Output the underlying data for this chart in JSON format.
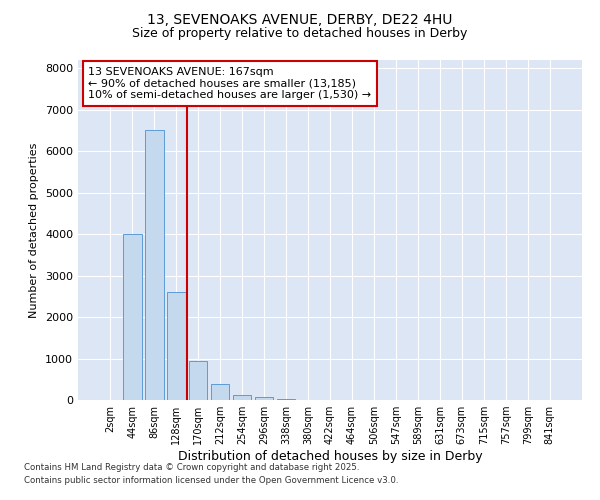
{
  "title_line1": "13, SEVENOAKS AVENUE, DERBY, DE22 4HU",
  "title_line2": "Size of property relative to detached houses in Derby",
  "xlabel": "Distribution of detached houses by size in Derby",
  "ylabel": "Number of detached properties",
  "categories": [
    "2sqm",
    "44sqm",
    "86sqm",
    "128sqm",
    "170sqm",
    "212sqm",
    "254sqm",
    "296sqm",
    "338sqm",
    "380sqm",
    "422sqm",
    "464sqm",
    "506sqm",
    "547sqm",
    "589sqm",
    "631sqm",
    "673sqm",
    "715sqm",
    "757sqm",
    "799sqm",
    "841sqm"
  ],
  "values": [
    10,
    4000,
    6500,
    2600,
    950,
    380,
    130,
    65,
    20,
    5,
    0,
    0,
    0,
    0,
    0,
    0,
    0,
    0,
    0,
    0,
    0
  ],
  "bar_color": "#c5d9ee",
  "bar_edge_color": "#5b9bd5",
  "vline_color": "#cc0000",
  "annotation_text": "13 SEVENOAKS AVENUE: 167sqm\n← 90% of detached houses are smaller (13,185)\n10% of semi-detached houses are larger (1,530) →",
  "annotation_box_edgecolor": "#cc0000",
  "annotation_box_facecolor": "white",
  "ylim": [
    0,
    8200
  ],
  "yticks": [
    0,
    1000,
    2000,
    3000,
    4000,
    5000,
    6000,
    7000,
    8000
  ],
  "plot_background": "#dce6f5",
  "grid_color": "white",
  "footer_line1": "Contains HM Land Registry data © Crown copyright and database right 2025.",
  "footer_line2": "Contains public sector information licensed under the Open Government Licence v3.0."
}
